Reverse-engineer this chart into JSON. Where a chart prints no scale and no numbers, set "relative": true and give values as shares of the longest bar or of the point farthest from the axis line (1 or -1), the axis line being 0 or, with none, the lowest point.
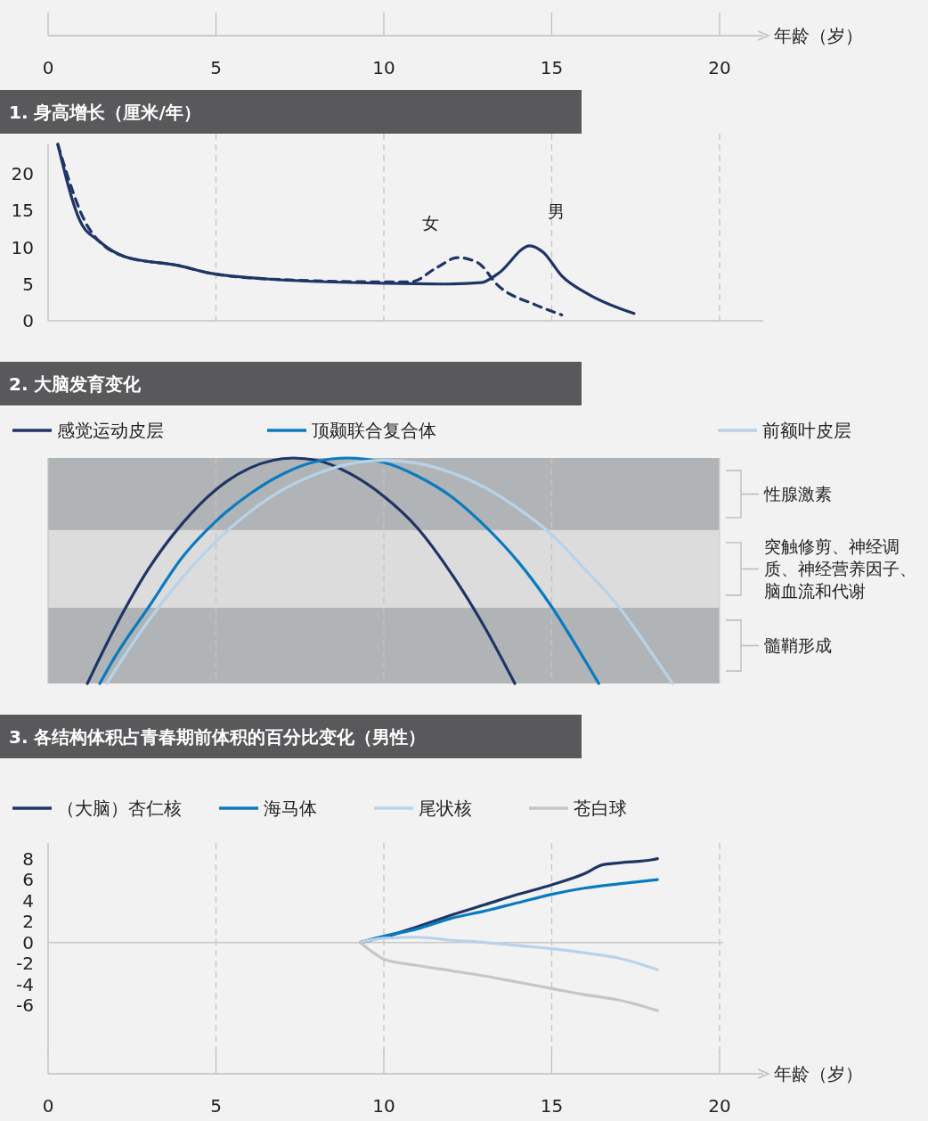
{
  "chart_data": [
    {
      "type": "line",
      "title": "1. 身高增长（厘米/年）",
      "xlabel": "年龄（岁）",
      "xlim": [
        0,
        21.3
      ],
      "xticks": [
        0,
        5,
        10,
        15,
        20
      ],
      "ylim": [
        0,
        24
      ],
      "yticks": [
        0,
        5,
        10,
        15,
        20
      ],
      "grid": "x",
      "legend": false,
      "series": [
        {
          "name": "男",
          "color": "#1f3566",
          "line_style": "solid",
          "x": [
            0.29,
            0.95,
            1.5,
            2.3,
            3.9,
            4.8,
            6.5,
            10,
            11.8,
            12.9,
            13.4,
            14.35,
            14.75,
            15.3,
            16.1,
            17.45
          ],
          "values": [
            24,
            13.6,
            10.9,
            8.7,
            7.5,
            6.5,
            5.7,
            5.1,
            5.0,
            5.2,
            6.4,
            10.2,
            9.3,
            6.1,
            3.6,
            1.0
          ]
        },
        {
          "name": "女",
          "color": "#1f3566",
          "line_style": "dashed",
          "x": [
            0.29,
            1.2,
            2.3,
            3.9,
            4.8,
            6.5,
            10,
            10.8,
            11.6,
            12.2,
            12.8,
            13.4,
            14.5,
            15.3
          ],
          "values": [
            24,
            12.7,
            8.7,
            7.5,
            6.5,
            5.7,
            5.3,
            5.3,
            7.3,
            8.6,
            7.9,
            4.8,
            2.2,
            0.8
          ]
        }
      ]
    },
    {
      "type": "line",
      "title": "2. 大脑发育变化",
      "relative": true,
      "xlim": [
        0,
        20
      ],
      "xticks": [
        5,
        10,
        15
      ],
      "tick_labels": false,
      "grid": "x",
      "legend": "top",
      "series": [
        {
          "name": "感觉运动皮层",
          "color": "#1f3566",
          "x": [
            1.17,
            2,
            3,
            4,
            5,
            6,
            7.3,
            8,
            9,
            10,
            11,
            12,
            13,
            13.9
          ],
          "values": [
            0,
            0.25,
            0.51,
            0.71,
            0.86,
            0.955,
            1,
            0.99,
            0.93,
            0.83,
            0.69,
            0.49,
            0.25,
            0
          ]
        },
        {
          "name": "顶颞联合复合体",
          "color": "#0a7bc0",
          "x": [
            1.54,
            2,
            3,
            4,
            5,
            6,
            7,
            8,
            8.9,
            10,
            11,
            12,
            13,
            14,
            15,
            16,
            16.4
          ],
          "values": [
            0,
            0.12,
            0.34,
            0.56,
            0.72,
            0.84,
            0.93,
            0.985,
            1,
            0.98,
            0.92,
            0.83,
            0.7,
            0.54,
            0.34,
            0.1,
            0
          ]
        },
        {
          "name": "前额叶皮层",
          "color": "#b7d3ea",
          "x": [
            1.75,
            2,
            3,
            4,
            5,
            6,
            7,
            8,
            9,
            10,
            11,
            12,
            13,
            14,
            15,
            16,
            17,
            18,
            18.6
          ],
          "values": [
            0,
            0.059,
            0.28,
            0.47,
            0.63,
            0.76,
            0.86,
            0.93,
            0.975,
            0.99,
            0.977,
            0.936,
            0.87,
            0.776,
            0.66,
            0.505,
            0.34,
            0.13,
            0
          ]
        }
      ],
      "bands": [
        {
          "axis": "y",
          "from": 0.68,
          "to": 1.0,
          "label": "性腺激素",
          "color": "#b1b4b6"
        },
        {
          "axis": "y",
          "from": 0.336,
          "to": 0.68,
          "label": "突触修剪、神经调质、神经营养因子、脑血流和代谢",
          "color": "#dcdcdc"
        },
        {
          "axis": "y",
          "from": 0,
          "to": 0.336,
          "label": "髓鞘形成",
          "color": "#b1b4b6"
        }
      ]
    },
    {
      "type": "line",
      "title": "3. 各结构体积占青春期前体积的百分比变化（男性）",
      "xlabel": "年龄（岁）",
      "xlim": [
        0,
        21.3
      ],
      "xticks": [
        0,
        5,
        10,
        15,
        20
      ],
      "ylim": [
        -10.5,
        9.5
      ],
      "yticks": [
        8,
        6,
        4,
        2,
        0,
        -2,
        -4,
        -6
      ],
      "grid": "x",
      "legend": "top",
      "ref_lines": [
        {
          "axis": "y",
          "value": 0,
          "color": "#c8c8c8"
        }
      ],
      "series": [
        {
          "name": "（大脑）杏仁核",
          "color": "#1f3566",
          "x": [
            9.3,
            10,
            11,
            12,
            13,
            14,
            15,
            16,
            16.5,
            17,
            18,
            18.15
          ],
          "values": [
            0,
            0.5,
            1.5,
            2.6,
            3.6,
            4.6,
            5.5,
            6.6,
            7.4,
            7.6,
            7.9,
            8.0
          ]
        },
        {
          "name": "海马体",
          "color": "#0a7bc0",
          "x": [
            9.3,
            10,
            11,
            12,
            13,
            14,
            15,
            16,
            17,
            18.15
          ],
          "values": [
            0,
            0.6,
            1.3,
            2.3,
            3.0,
            3.8,
            4.6,
            5.2,
            5.6,
            6.0
          ]
        },
        {
          "name": "尾状核",
          "color": "#b7d3ea",
          "x": [
            9.3,
            10,
            11,
            12,
            13,
            14,
            15,
            16,
            17,
            18.15
          ],
          "values": [
            0,
            0.4,
            0.5,
            0.2,
            0,
            -0.3,
            -0.6,
            -1.0,
            -1.5,
            -2.6
          ]
        },
        {
          "name": "苍白球",
          "color": "#c6c6c6",
          "x": [
            9.3,
            9.7,
            10,
            11,
            12,
            13,
            14,
            15,
            16,
            17,
            18.15
          ],
          "values": [
            0,
            -1,
            -1.6,
            -2.2,
            -2.7,
            -3.2,
            -3.8,
            -4.4,
            -5.0,
            -5.5,
            -6.5
          ]
        }
      ]
    }
  ]
}
